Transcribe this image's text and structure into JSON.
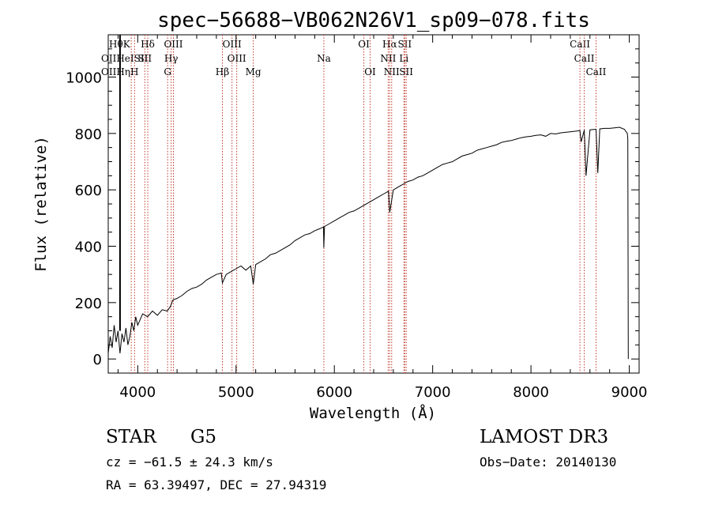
{
  "chart_data": {
    "type": "line",
    "title": "spec−56688−VB062N26V1_sp09−078.fits",
    "xlabel": "Wavelength (Å)",
    "ylabel": "Flux (relative)",
    "xlim": [
      3700,
      9100
    ],
    "ylim": [
      -50,
      1150
    ],
    "xticks": [
      4000,
      5000,
      6000,
      7000,
      8000,
      9000
    ],
    "yticks": [
      0,
      200,
      400,
      600,
      800,
      1000
    ],
    "spectrum": {
      "x": [
        3700,
        3720,
        3740,
        3760,
        3780,
        3800,
        3820,
        3840,
        3860,
        3880,
        3900,
        3920,
        3940,
        3960,
        3980,
        4000,
        4050,
        4100,
        4150,
        4200,
        4250,
        4300,
        4330,
        4360,
        4400,
        4450,
        4500,
        4550,
        4600,
        4650,
        4700,
        4750,
        4800,
        4850,
        4861,
        4900,
        4950,
        5000,
        5050,
        5100,
        5150,
        5175,
        5200,
        5250,
        5300,
        5350,
        5400,
        5450,
        5500,
        5550,
        5600,
        5650,
        5700,
        5750,
        5800,
        5850,
        5890,
        5893,
        5900,
        5950,
        6000,
        6050,
        6100,
        6150,
        6200,
        6250,
        6300,
        6350,
        6400,
        6450,
        6500,
        6550,
        6563,
        6600,
        6650,
        6700,
        6750,
        6800,
        6850,
        6900,
        6950,
        7000,
        7050,
        7100,
        7150,
        7200,
        7250,
        7300,
        7350,
        7400,
        7450,
        7500,
        7550,
        7600,
        7650,
        7700,
        7750,
        7800,
        7850,
        7900,
        7950,
        8000,
        8050,
        8100,
        8150,
        8200,
        8250,
        8300,
        8350,
        8400,
        8450,
        8498,
        8510,
        8542,
        8560,
        8600,
        8662,
        8680,
        8700,
        8750,
        8800,
        8850,
        8900,
        8950,
        8980,
        8985,
        8990
      ],
      "y": [
        20,
        80,
        40,
        120,
        60,
        100,
        20,
        90,
        60,
        110,
        50,
        80,
        130,
        100,
        150,
        120,
        160,
        150,
        170,
        155,
        175,
        170,
        185,
        210,
        215,
        225,
        240,
        250,
        255,
        265,
        280,
        290,
        300,
        305,
        270,
        300,
        310,
        320,
        330,
        315,
        330,
        265,
        335,
        345,
        355,
        370,
        375,
        385,
        395,
        405,
        420,
        430,
        440,
        445,
        455,
        462,
        468,
        395,
        470,
        480,
        490,
        500,
        510,
        520,
        525,
        535,
        545,
        555,
        565,
        575,
        585,
        595,
        520,
        600,
        610,
        620,
        630,
        635,
        645,
        650,
        660,
        670,
        680,
        690,
        695,
        700,
        710,
        720,
        725,
        730,
        740,
        745,
        750,
        755,
        760,
        768,
        772,
        775,
        780,
        785,
        788,
        790,
        793,
        795,
        790,
        800,
        798,
        802,
        804,
        806,
        808,
        810,
        770,
        812,
        650,
        813,
        815,
        660,
        816,
        818,
        818,
        820,
        822,
        815,
        800,
        780,
        0
      ]
    },
    "spectral_lines": [
      {
        "label": "Hβ",
        "x": 4861,
        "row": 3
      },
      {
        "label": "OIII",
        "x": 4959,
        "row": 1
      },
      {
        "label": "OIII",
        "x": 5007,
        "row": 2
      },
      {
        "label": "Mg",
        "x": 5175,
        "row": 3
      },
      {
        "label": "Na",
        "x": 5893,
        "row": 2
      },
      {
        "label": "OI",
        "x": 6300,
        "row": 1
      },
      {
        "label": "OI",
        "x": 6364,
        "row": 3
      },
      {
        "label": "Hα",
        "x": 6563,
        "row": 1
      },
      {
        "label": "NII",
        "x": 6548,
        "row": 2
      },
      {
        "label": "NII",
        "x": 6583,
        "row": 3
      },
      {
        "label": "SII",
        "x": 6716,
        "row": 1
      },
      {
        "label": "Li",
        "x": 6708,
        "row": 2
      },
      {
        "label": "SII",
        "x": 6731,
        "row": 3
      },
      {
        "label": "CaII",
        "x": 8498,
        "row": 1
      },
      {
        "label": "CaII",
        "x": 8542,
        "row": 2
      },
      {
        "label": "CaII",
        "x": 8662,
        "row": 3
      },
      {
        "label": "H",
        "x": 3968,
        "row": 3
      },
      {
        "label": "Hδ",
        "x": 4102,
        "row": 1
      },
      {
        "label": "Hγ",
        "x": 4340,
        "row": 2
      },
      {
        "label": "G",
        "x": 4304,
        "row": 3
      },
      {
        "label": "OIII",
        "x": 4363,
        "row": 1
      },
      {
        "label": "K",
        "x": 3934,
        "row": 1
      },
      {
        "label": "SII",
        "x": 4072,
        "row": 2
      }
    ]
  },
  "uv_labels": {
    "row1": "HθK",
    "row2": "OIIHeISII",
    "row3": "OIIHηH"
  },
  "info": {
    "object_class": "STAR",
    "subclass": "G5",
    "survey": "LAMOST DR3",
    "cz": "cz = −61.5 ± 24.3 km/s",
    "obs_date": "Obs−Date: 20140130",
    "coords": "RA =  63.39497, DEC =  27.94319"
  }
}
